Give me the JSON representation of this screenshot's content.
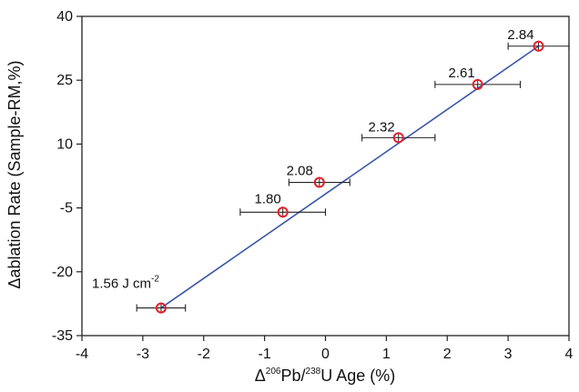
{
  "chart_data": {
    "type": "scatter",
    "title": "",
    "xlabel": {
      "prefix": "Δ",
      "sup1": "206",
      "mid": "Pb/",
      "sup2": "238",
      "suffix": "U Age (%)"
    },
    "ylabel": "Δablation Rate (Sample-RM,%)",
    "xlim": [
      -4,
      4
    ],
    "ylim": [
      -35,
      40
    ],
    "xticks": [
      "-4",
      "-3",
      "-2",
      "-1",
      "0",
      "1",
      "2",
      "3",
      "4"
    ],
    "yticks": [
      "-35",
      "-20",
      "-5",
      "10",
      "25",
      "40"
    ],
    "grid": false,
    "points": [
      {
        "x": -2.7,
        "y": -28.5,
        "xerr": 0.4,
        "label": "1.56 J cm",
        "label_sup": "-2"
      },
      {
        "x": -0.7,
        "y": -6,
        "xerr": 0.7,
        "label": "1.80",
        "label_sup": ""
      },
      {
        "x": -0.1,
        "y": 1,
        "xerr": 0.5,
        "label": "2.08",
        "label_sup": ""
      },
      {
        "x": 1.2,
        "y": 11.5,
        "xerr": 0.6,
        "label": "2.32",
        "label_sup": ""
      },
      {
        "x": 2.5,
        "y": 24,
        "xerr": 0.7,
        "label": "2.61",
        "label_sup": ""
      },
      {
        "x": 3.5,
        "y": 33,
        "xerr": 0.5,
        "label": "2.84",
        "label_sup": ""
      }
    ],
    "fit_line": {
      "x": [
        -2.7,
        3.5
      ],
      "y": [
        -28.5,
        33
      ],
      "color": "#3a56a8"
    },
    "marker_color": "#e0202a",
    "errorbar_color": "#222222"
  }
}
